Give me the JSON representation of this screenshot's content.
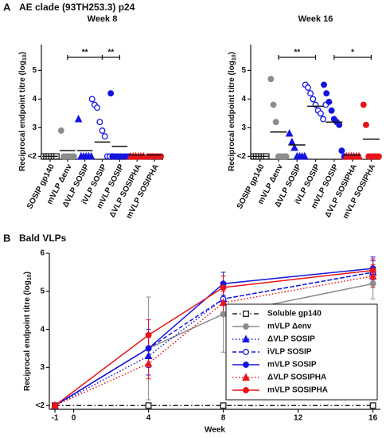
{
  "chart_data": [
    {
      "type": "dot",
      "panel": "A",
      "title": "AE clade (93TH253.3) p24",
      "subtitle": "Week 8",
      "y_label": [
        "Reciprocal endpoint titre (log",
        "10",
        ")"
      ],
      "categories": [
        "SOSIP gp140",
        "mVLP Δenv",
        "ΔVLP SOSIP",
        "iVLP SOSIP",
        "mVLP SOSIP",
        "ΔVLP SOSIPHA",
        "mVLP SOSIPHA"
      ],
      "colors": [
        "#222222",
        "#8c8c8c",
        "#1515e0",
        "#1515e0",
        "#1515e0",
        "#e8141a",
        "#e8141a"
      ],
      "markers": [
        "square-open",
        "circle",
        "triangle",
        "circle-open",
        "circle",
        "triangle",
        "circle"
      ],
      "values": [
        [
          2,
          2,
          2,
          2,
          2,
          2
        ],
        [
          2.9,
          2,
          2,
          2,
          2,
          2
        ],
        [
          3.3,
          2,
          2,
          2,
          2,
          2
        ],
        [
          4.0,
          3.8,
          3.7,
          3.2,
          2.9,
          2.7,
          2,
          2,
          2
        ],
        [
          4.2,
          2,
          2,
          2,
          2,
          2,
          2,
          2
        ],
        [
          2,
          2,
          2,
          2,
          2,
          2
        ],
        [
          2,
          2,
          2,
          2,
          2,
          2
        ]
      ],
      "medians": [
        2,
        2.2,
        2.2,
        2.5,
        2.35,
        2.05,
        2.05
      ],
      "significance": [
        {
          "between": [
            "mVLP Δenv",
            "iVLP SOSIP"
          ],
          "label": "**"
        },
        {
          "between": [
            "iVLP SOSIP",
            "mVLP SOSIP"
          ],
          "label": "**"
        }
      ],
      "ylim": [
        1.9,
        5.9
      ],
      "yticks": [
        {
          "value": 2,
          "label": "<2"
        },
        3,
        4,
        5
      ]
    },
    {
      "type": "dot",
      "subtitle": "Week 16",
      "y_label": [
        "Reciprocal endpoint titre (log",
        "10",
        ")"
      ],
      "categories": [
        "SOSIP gp140",
        "mVLP Δenv",
        "ΔVLP SOSIP",
        "iVLP SOSIP",
        "mVLP SOSIP",
        "ΔVLP SOSIPHA",
        "mVLP SOSIPHA"
      ],
      "colors": [
        "#222222",
        "#8c8c8c",
        "#1515e0",
        "#1515e0",
        "#1515e0",
        "#e8141a",
        "#e8141a"
      ],
      "markers": [
        "square-open",
        "circle",
        "triangle",
        "circle-open",
        "circle",
        "triangle",
        "circle"
      ],
      "values": [
        [
          2,
          2,
          2,
          2,
          2,
          2
        ],
        [
          4.7,
          3.8,
          3.2,
          2,
          2,
          2,
          2
        ],
        [
          2.8,
          2.5,
          2.3,
          2,
          2,
          2,
          2
        ],
        [
          4.5,
          4.4,
          4.2,
          4.0,
          3.8,
          3.6,
          3.5,
          3.3,
          3.8
        ],
        [
          4.5,
          4.2,
          3.9,
          3.6,
          3.3,
          3.2,
          3.1,
          2.2,
          2.0
        ],
        [
          2,
          2,
          2,
          2,
          2,
          2
        ],
        [
          3.8,
          3.1,
          2,
          2,
          2,
          2,
          2
        ]
      ],
      "medians": [
        2,
        2.85,
        2.4,
        3.75,
        3.2,
        2.05,
        2.6
      ],
      "significance": [
        {
          "between": [
            "mVLP Δenv",
            "iVLP SOSIP"
          ],
          "label": "**"
        },
        {
          "between": [
            "mVLP SOSIP",
            "mVLP SOSIPHA"
          ],
          "label": "*"
        }
      ],
      "ylim": [
        1.9,
        5.9
      ],
      "yticks": [
        {
          "value": 2,
          "label": "<2"
        },
        3,
        4,
        5
      ]
    },
    {
      "type": "line",
      "panel": "B",
      "title": "Bald VLPs",
      "x_label": "Week",
      "y_label": [
        "Reciprocal endpoint titre (log",
        "10",
        ")"
      ],
      "x": [
        -1,
        4,
        8,
        16
      ],
      "xlim": [
        -1.3,
        16.4
      ],
      "xticks": [
        -1,
        0,
        4,
        8,
        12,
        16
      ],
      "ylim": [
        1.9,
        6
      ],
      "yticks": [
        {
          "value": 2,
          "label": "<2"
        },
        3,
        4,
        5,
        6
      ],
      "legend": "lower right",
      "series": [
        {
          "name": "Soluble gp140",
          "color": "#222222",
          "dash": "dashdot",
          "marker": "square-open",
          "values": [
            2,
            2,
            2,
            2
          ],
          "errors": [
            0,
            0,
            0,
            0
          ]
        },
        {
          "name": "mVLP Δenv",
          "color": "#8c8c8c",
          "dash": "solid",
          "marker": "circle",
          "values": [
            2,
            3.5,
            4.4,
            5.2
          ],
          "errors": [
            0,
            1.35,
            1.0,
            0.4
          ]
        },
        {
          "name": "ΔVLP SOSIP",
          "color": "#1515e0",
          "dash": "dotted",
          "marker": "triangle",
          "values": [
            2,
            3.3,
            4.8,
            5.5
          ],
          "errors": [
            0,
            0.5,
            0.4,
            0.3
          ]
        },
        {
          "name": "iVLP SOSIP",
          "color": "#1515e0",
          "dash": "dashed",
          "marker": "circle-open",
          "values": [
            2,
            3.5,
            4.8,
            5.5
          ],
          "errors": [
            0,
            0.4,
            0.4,
            0.3
          ]
        },
        {
          "name": "mVLP SOSIP",
          "color": "#1515e0",
          "dash": "solid",
          "marker": "circle",
          "values": [
            2,
            3.5,
            5.2,
            5.6
          ],
          "errors": [
            0,
            0.5,
            0.3,
            0.3
          ]
        },
        {
          "name": "ΔVLP SOSIPHA",
          "color": "#e8141a",
          "dash": "dotted",
          "marker": "triangle",
          "values": [
            2,
            3.1,
            4.7,
            5.4
          ],
          "errors": [
            0,
            0.4,
            0.3,
            0.3
          ]
        },
        {
          "name": "mVLP SOSIPHA",
          "color": "#e8141a",
          "dash": "solid",
          "marker": "circle",
          "values": [
            2,
            3.85,
            5.1,
            5.55
          ],
          "errors": [
            0,
            0.4,
            0.3,
            0.3
          ]
        }
      ]
    }
  ]
}
